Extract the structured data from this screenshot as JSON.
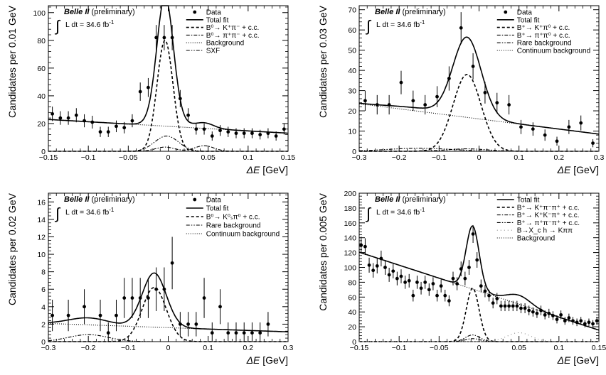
{
  "chart_data": [
    {
      "type": "scatter",
      "experiment": "Belle II",
      "status": "(preliminary)",
      "luminosity": "L dt = 34.6 fb",
      "luminosity_unit_exp": "-1",
      "xlabel_symbol": "ΔE",
      "xlabel_unit": "[GeV]",
      "ylabel": "Candidates per 0.01 GeV",
      "xlim": [
        -0.15,
        0.15
      ],
      "ylim": [
        0,
        105
      ],
      "xticks": [
        -0.15,
        -0.1,
        -0.05,
        0,
        0.05,
        0.1,
        0.15
      ],
      "xtick_labels": [
        "−0.15",
        "−0.1",
        "−0.05",
        "0",
        "0.05",
        "0.1",
        "0.15"
      ],
      "yticks": [
        0,
        20,
        40,
        60,
        80,
        100
      ],
      "ytick_labels": [
        "0",
        "20",
        "40",
        "60",
        "80",
        "100"
      ],
      "legend_position": "top-right",
      "legend": [
        {
          "label": "Data",
          "style": "marker"
        },
        {
          "label": "Total fit",
          "style": "solid"
        },
        {
          "label": "B⁰→ K⁺π⁻ + c.c.",
          "style": "dashed"
        },
        {
          "label": "B⁰→ π⁺π⁻ + c.c.",
          "style": "dashdot"
        },
        {
          "label": "Background",
          "style": "dotted"
        },
        {
          "label": "SXF",
          "style": "dashdotdot"
        }
      ],
      "data_points": {
        "x": [
          -0.145,
          -0.135,
          -0.125,
          -0.115,
          -0.105,
          -0.095,
          -0.085,
          -0.075,
          -0.065,
          -0.055,
          -0.045,
          -0.035,
          -0.025,
          -0.015,
          -0.005,
          0.005,
          0.015,
          0.025,
          0.035,
          0.045,
          0.055,
          0.065,
          0.075,
          0.085,
          0.095,
          0.105,
          0.115,
          0.125,
          0.135,
          0.145
        ],
        "y": [
          27,
          24,
          24,
          26,
          22,
          21,
          14,
          14,
          18,
          17,
          22,
          43,
          46,
          82,
          82,
          82,
          38,
          26,
          16,
          16,
          11,
          15,
          14,
          13,
          13,
          13,
          12,
          13,
          11,
          16
        ],
        "yerr": [
          5.2,
          4.9,
          4.9,
          5.1,
          4.7,
          4.6,
          3.7,
          3.7,
          4.2,
          4.1,
          4.7,
          6.6,
          6.8,
          9.1,
          9.1,
          9.1,
          6.2,
          5.1,
          4.0,
          4.0,
          3.3,
          3.9,
          3.7,
          3.6,
          3.6,
          3.6,
          3.5,
          3.6,
          3.3,
          4.0
        ]
      },
      "curves": {
        "background": {
          "a": 18,
          "b": -33
        },
        "signal": [
          {
            "mu": -0.004,
            "sigma": 0.01,
            "amp": 80
          }
        ],
        "signal2": [
          {
            "mu": -0.004,
            "sigma": 0.012,
            "amp": 3
          },
          {
            "mu": 0.045,
            "sigma": 0.012,
            "amp": 4
          }
        ],
        "sxf": {
          "mu": -0.002,
          "sigma": 0.015,
          "amp": 11
        }
      }
    },
    {
      "type": "scatter",
      "experiment": "Belle II",
      "status": "(preliminary)",
      "luminosity": "L dt = 34.6 fb",
      "luminosity_unit_exp": "-1",
      "xlabel_symbol": "ΔE",
      "xlabel_unit": "[GeV]",
      "ylabel": "Candidates per 0.03 GeV",
      "xlim": [
        -0.3,
        0.3
      ],
      "ylim": [
        0,
        72
      ],
      "xticks": [
        -0.3,
        -0.2,
        -0.1,
        0,
        0.1,
        0.2,
        0.3
      ],
      "xtick_labels": [
        "−0.3",
        "−0.2",
        "−0.1",
        "0",
        "0.1",
        "0.2",
        "0.3"
      ],
      "yticks": [
        0,
        10,
        20,
        30,
        40,
        50,
        60,
        70
      ],
      "ytick_labels": [
        "0",
        "10",
        "20",
        "30",
        "40",
        "50",
        "60",
        "70"
      ],
      "legend_position": "top-right",
      "legend": [
        {
          "label": "Data",
          "style": "marker"
        },
        {
          "label": "Total fit",
          "style": "solid"
        },
        {
          "label": "B⁺→ K⁺π⁰ + c.c.",
          "style": "dashed"
        },
        {
          "label": "B⁺→ π⁺π⁰ + c.c.",
          "style": "dashdot"
        },
        {
          "label": "Rare background",
          "style": "dashdotdot"
        },
        {
          "label": "Continuum background",
          "style": "dotted"
        }
      ],
      "data_points": {
        "x": [
          -0.285,
          -0.255,
          -0.225,
          -0.195,
          -0.165,
          -0.135,
          -0.105,
          -0.075,
          -0.045,
          -0.015,
          0.015,
          0.045,
          0.075,
          0.105,
          0.135,
          0.165,
          0.195,
          0.225,
          0.255,
          0.285
        ],
        "y": [
          25,
          23,
          23,
          34,
          25,
          23,
          27,
          36,
          61,
          42,
          29,
          24,
          23,
          12,
          11,
          8,
          5,
          12,
          14,
          4
        ],
        "yerr": [
          5.0,
          4.8,
          4.8,
          5.8,
          5.0,
          4.8,
          5.2,
          6.0,
          7.8,
          6.5,
          5.4,
          4.9,
          4.8,
          3.5,
          3.3,
          2.8,
          2.2,
          3.5,
          3.7,
          2.0
        ]
      },
      "curves": {
        "background": {
          "a": 16,
          "b": -25
        },
        "signal": [
          {
            "mu": -0.03,
            "sigma": 0.035,
            "amp": 38
          }
        ],
        "signal2": [
          {
            "mu": -0.03,
            "sigma": 0.05,
            "amp": 1.2
          }
        ],
        "rare": {
          "mu": -0.15,
          "sigma": 0.08,
          "amp": 1.5
        }
      }
    },
    {
      "type": "scatter",
      "experiment": "Belle II",
      "status": "(preliminary)",
      "luminosity": "L dt = 34.6 fb",
      "luminosity_unit_exp": "-1",
      "xlabel_symbol": "ΔE",
      "xlabel_unit": "[GeV]",
      "ylabel": "Candidates per 0.02 GeV",
      "xlim": [
        -0.3,
        0.3
      ],
      "ylim": [
        0,
        17
      ],
      "xticks": [
        -0.3,
        -0.2,
        -0.1,
        0,
        0.1,
        0.2,
        0.3
      ],
      "xtick_labels": [
        "−0.3",
        "−0.2",
        "−0.1",
        "0",
        "0.1",
        "0.2",
        "0.3"
      ],
      "yticks": [
        0,
        2,
        4,
        6,
        8,
        10,
        12,
        14,
        16
      ],
      "ytick_labels": [
        "0",
        "2",
        "4",
        "6",
        "8",
        "10",
        "12",
        "14",
        "16"
      ],
      "legend_position": "top-right",
      "legend": [
        {
          "label": "Data",
          "style": "marker"
        },
        {
          "label": "Total fit",
          "style": "solid"
        },
        {
          "label": "B⁰→ K⁰ₛπ⁰ + c.c.",
          "style": "dashed"
        },
        {
          "label": "Rare background",
          "style": "dashdotdot"
        },
        {
          "label": "Continuum background",
          "style": "dotted"
        }
      ],
      "data_points": {
        "x": [
          -0.29,
          -0.25,
          -0.21,
          -0.17,
          -0.15,
          -0.13,
          -0.11,
          -0.09,
          -0.07,
          -0.05,
          -0.03,
          -0.01,
          0.01,
          0.03,
          0.05,
          0.07,
          0.09,
          0.11,
          0.13,
          0.15,
          0.17,
          0.19,
          0.21,
          0.23,
          0.25
        ],
        "y": [
          3,
          3,
          4,
          3,
          1,
          3,
          5,
          5,
          5,
          5,
          6,
          6,
          9,
          2,
          2,
          2,
          5,
          1,
          4,
          1,
          1,
          1,
          1,
          1,
          2
        ],
        "yerr": [
          1.8,
          1.8,
          2.0,
          1.8,
          1.2,
          1.8,
          2.3,
          2.3,
          2.3,
          2.3,
          2.5,
          2.5,
          3.0,
          1.4,
          1.4,
          1.4,
          2.3,
          1.2,
          2.0,
          1.2,
          1.2,
          1.2,
          1.2,
          1.2,
          1.4
        ]
      },
      "curves": {
        "background": {
          "a": 1.6,
          "b": -1.6
        },
        "signal": [
          {
            "mu": -0.035,
            "sigma": 0.03,
            "amp": 6.2
          }
        ],
        "rare": {
          "mu": -0.2,
          "sigma": 0.05,
          "amp": 0.8
        }
      }
    },
    {
      "type": "scatter",
      "experiment": "Belle II",
      "status": "(preliminary)",
      "luminosity": "L dt = 34.6 fb",
      "luminosity_unit_exp": "-1",
      "xlabel_symbol": "ΔE",
      "xlabel_unit": "[GeV]",
      "ylabel": "Candidates per 0.005 GeV",
      "xlim": [
        -0.15,
        0.15
      ],
      "ylim": [
        0,
        200
      ],
      "xticks": [
        -0.15,
        -0.1,
        -0.05,
        0,
        0.05,
        0.1,
        0.15
      ],
      "xtick_labels": [
        "−0.15",
        "−0.1",
        "−0.05",
        "0",
        "0.05",
        "0.1",
        "0.15"
      ],
      "yticks": [
        0,
        20,
        40,
        60,
        80,
        100,
        120,
        140,
        160,
        180,
        200
      ],
      "ytick_labels": [
        "0",
        "20",
        "40",
        "60",
        "80",
        "100",
        "120",
        "140",
        "160",
        "180",
        "200"
      ],
      "legend_position": "top-right",
      "legend": [
        {
          "label": "Total fit",
          "style": "solid"
        },
        {
          "label": "B⁺→ K⁺π⁻π⁺ + c.c.",
          "style": "dashed"
        },
        {
          "label": "B⁺→ K⁺K⁻π⁺ + c.c.",
          "style": "dashdot"
        },
        {
          "label": "B⁺→ π⁺π⁻π⁺ + c.c.",
          "style": "dashdotdot"
        },
        {
          "label": "B→X_c h → Kππ",
          "style": "sparse"
        },
        {
          "label": "Background",
          "style": "dotted"
        }
      ],
      "data_points": {
        "x": [
          -0.1475,
          -0.1425,
          -0.1375,
          -0.1325,
          -0.1275,
          -0.1225,
          -0.1175,
          -0.1125,
          -0.1075,
          -0.1025,
          -0.0975,
          -0.0925,
          -0.0875,
          -0.0825,
          -0.0775,
          -0.0725,
          -0.0675,
          -0.0625,
          -0.0575,
          -0.0525,
          -0.0475,
          -0.0425,
          -0.0375,
          -0.0325,
          -0.0275,
          -0.0225,
          -0.0175,
          -0.0125,
          -0.0075,
          -0.0025,
          0.0025,
          0.0075,
          0.0125,
          0.0175,
          0.0225,
          0.0275,
          0.0325,
          0.0375,
          0.0425,
          0.0475,
          0.0525,
          0.0575,
          0.0625,
          0.0675,
          0.0725,
          0.0775,
          0.0825,
          0.0875,
          0.0925,
          0.0975,
          0.1025,
          0.1075,
          0.1125,
          0.1175,
          0.1225,
          0.1275,
          0.1325,
          0.1375,
          0.1425,
          0.1475
        ],
        "y": [
          130,
          128,
          103,
          96,
          102,
          112,
          100,
          90,
          95,
          85,
          88,
          80,
          82,
          62,
          80,
          72,
          80,
          70,
          78,
          62,
          75,
          62,
          55,
          85,
          78,
          98,
          85,
          100,
          145,
          110,
          75,
          68,
          62,
          52,
          58,
          48,
          48,
          48,
          48,
          48,
          45,
          45,
          42,
          40,
          38,
          42,
          36,
          38,
          35,
          30,
          36,
          28,
          32,
          28,
          26,
          28,
          24,
          26,
          24,
          28
        ],
        "yerr": [
          11.4,
          11.3,
          10.1,
          9.8,
          10.1,
          10.6,
          10.0,
          9.5,
          9.7,
          9.2,
          9.4,
          8.9,
          9.1,
          7.9,
          8.9,
          8.5,
          8.9,
          8.4,
          8.8,
          7.9,
          8.7,
          7.9,
          7.4,
          9.2,
          8.8,
          9.9,
          9.2,
          10.0,
          12.0,
          10.5,
          8.7,
          8.2,
          7.9,
          7.2,
          7.6,
          6.9,
          6.9,
          6.9,
          6.9,
          6.9,
          6.7,
          6.7,
          6.5,
          6.3,
          6.2,
          6.5,
          6.0,
          6.2,
          5.9,
          5.5,
          6.0,
          5.3,
          5.7,
          5.3,
          5.1,
          5.3,
          4.9,
          5.1,
          4.9,
          5.3
        ]
      },
      "curves": {
        "background": {
          "a": 68,
          "b": -350
        },
        "signal": [
          {
            "mu": -0.008,
            "sigma": 0.008,
            "amp": 72
          }
        ],
        "signal2": [
          {
            "mu": -0.008,
            "sigma": 0.009,
            "amp": 4
          }
        ],
        "signal3": [
          {
            "mu": -0.008,
            "sigma": 0.009,
            "amp": 9
          }
        ],
        "xc": {
          "mu": 0.05,
          "sigma": 0.015,
          "amp": 12
        }
      }
    }
  ]
}
